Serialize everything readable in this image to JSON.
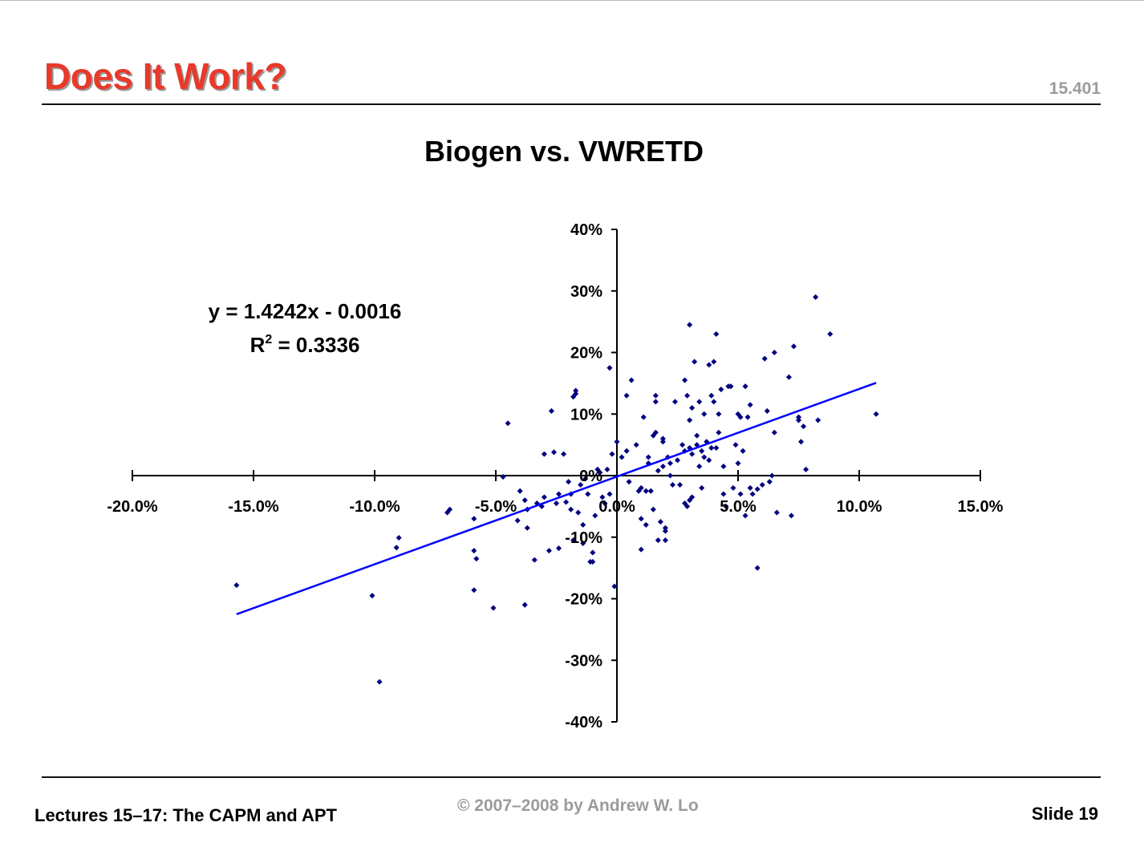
{
  "slide": {
    "title": "Does It Work?",
    "course_number": "15.401",
    "footer_left": "Lectures 15–17: The CAPM and APT",
    "footer_center": "© 2007–2008 by Andrew W. Lo",
    "footer_right": "Slide 19"
  },
  "colors": {
    "title": "#e8392a",
    "points": "#000080",
    "trendline": "#0000ff",
    "axes": "#000000"
  },
  "chart_data": {
    "type": "scatter",
    "title": "Biogen vs. VWRETD",
    "xlabel": "",
    "ylabel": "",
    "xlim": [
      -0.2,
      0.15
    ],
    "ylim": [
      -0.4,
      0.4
    ],
    "x_ticks": [
      -0.2,
      -0.15,
      -0.1,
      -0.05,
      0.0,
      0.05,
      0.1,
      0.15
    ],
    "x_tick_labels": [
      "-20.0%",
      "-15.0%",
      "-10.0%",
      "-5.0%",
      "0.0%",
      "5.0%",
      "10.0%",
      "15.0%"
    ],
    "y_ticks": [
      0.4,
      0.3,
      0.2,
      0.1,
      0.0,
      -0.1,
      -0.2,
      -0.3,
      -0.4
    ],
    "y_tick_labels": [
      "40%",
      "30%",
      "20%",
      "10%",
      "0%",
      "-10%",
      "-20%",
      "-30%",
      "-40%"
    ],
    "grid": false,
    "legend": "none",
    "trendline": {
      "slope": 1.4242,
      "intercept": -0.0016,
      "x_range": [
        -0.157,
        0.107
      ],
      "equation_label": "y = 1.4242x - 0.0016",
      "r2_label_prefix": "R",
      "r2_label_sup": "2",
      "r2_label_suffix": " = 0.3336"
    },
    "series": [
      {
        "points": [
          [
            -0.157,
            -0.178
          ],
          [
            -0.101,
            -0.195
          ],
          [
            -0.098,
            -0.335
          ],
          [
            -0.091,
            -0.117
          ],
          [
            -0.09,
            -0.101
          ],
          [
            -0.07,
            -0.06
          ],
          [
            -0.069,
            -0.055
          ],
          [
            -0.059,
            -0.07
          ],
          [
            -0.058,
            -0.135
          ],
          [
            -0.059,
            -0.122
          ],
          [
            -0.059,
            -0.186
          ],
          [
            -0.051,
            -0.215
          ],
          [
            -0.047,
            -0.002
          ],
          [
            -0.045,
            0.085
          ],
          [
            -0.04,
            -0.025
          ],
          [
            -0.041,
            -0.073
          ],
          [
            -0.038,
            -0.04
          ],
          [
            -0.037,
            -0.055
          ],
          [
            -0.037,
            -0.085
          ],
          [
            -0.038,
            -0.21
          ],
          [
            -0.034,
            -0.137
          ],
          [
            -0.033,
            -0.045
          ],
          [
            -0.031,
            -0.05
          ],
          [
            -0.03,
            -0.035
          ],
          [
            -0.03,
            0.035
          ],
          [
            -0.028,
            -0.122
          ],
          [
            -0.027,
            0.105
          ],
          [
            -0.026,
            0.038
          ],
          [
            -0.025,
            -0.045
          ],
          [
            -0.024,
            -0.03
          ],
          [
            -0.024,
            -0.118
          ],
          [
            -0.022,
            0.035
          ],
          [
            -0.021,
            -0.043
          ],
          [
            -0.02,
            -0.01
          ],
          [
            -0.019,
            -0.03
          ],
          [
            -0.019,
            -0.055
          ],
          [
            -0.018,
            -0.105
          ],
          [
            -0.018,
            0.128
          ],
          [
            -0.017,
            0.133
          ],
          [
            -0.017,
            0.138
          ],
          [
            -0.016,
            -0.06
          ],
          [
            -0.015,
            -0.015
          ],
          [
            -0.014,
            -0.08
          ],
          [
            -0.014,
            -0.11
          ],
          [
            -0.013,
            -0.005
          ],
          [
            -0.012,
            -0.03
          ],
          [
            -0.011,
            -0.14
          ],
          [
            -0.01,
            -0.125
          ],
          [
            -0.01,
            -0.14
          ],
          [
            -0.009,
            -0.065
          ],
          [
            -0.008,
            0.01
          ],
          [
            -0.007,
            0.005
          ],
          [
            -0.006,
            -0.035
          ],
          [
            -0.005,
            -0.045
          ],
          [
            -0.004,
            0.01
          ],
          [
            -0.003,
            -0.03
          ],
          [
            -0.003,
            0.175
          ],
          [
            -0.002,
            0.035
          ],
          [
            -0.001,
            -0.18
          ],
          [
            0.0,
            0.055
          ],
          [
            0.002,
            0.03
          ],
          [
            0.004,
            0.04
          ],
          [
            0.004,
            0.13
          ],
          [
            0.005,
            -0.01
          ],
          [
            0.006,
            0.155
          ],
          [
            0.008,
            0.05
          ],
          [
            0.009,
            -0.025
          ],
          [
            0.01,
            -0.02
          ],
          [
            0.01,
            -0.07
          ],
          [
            0.01,
            -0.12
          ],
          [
            0.011,
            0.095
          ],
          [
            0.012,
            -0.025
          ],
          [
            0.012,
            -0.08
          ],
          [
            0.013,
            0.02
          ],
          [
            0.013,
            0.03
          ],
          [
            0.014,
            -0.025
          ],
          [
            0.015,
            0.065
          ],
          [
            0.015,
            -0.055
          ],
          [
            0.016,
            0.07
          ],
          [
            0.016,
            0.12
          ],
          [
            0.016,
            0.13
          ],
          [
            0.017,
            0.008
          ],
          [
            0.017,
            -0.105
          ],
          [
            0.018,
            -0.075
          ],
          [
            0.019,
            0.015
          ],
          [
            0.019,
            0.055
          ],
          [
            0.019,
            0.06
          ],
          [
            0.02,
            -0.085
          ],
          [
            0.02,
            -0.09
          ],
          [
            0.02,
            -0.105
          ],
          [
            0.021,
            0.03
          ],
          [
            0.022,
            0.0
          ],
          [
            0.022,
            0.02
          ],
          [
            0.023,
            -0.015
          ],
          [
            0.024,
            0.12
          ],
          [
            0.025,
            0.025
          ],
          [
            0.026,
            -0.015
          ],
          [
            0.027,
            0.05
          ],
          [
            0.028,
            0.04
          ],
          [
            0.028,
            0.155
          ],
          [
            0.029,
            0.13
          ],
          [
            0.03,
            0.045
          ],
          [
            0.03,
            0.09
          ],
          [
            0.031,
            0.11
          ],
          [
            0.028,
            -0.045
          ],
          [
            0.029,
            -0.05
          ],
          [
            0.03,
            -0.04
          ],
          [
            0.03,
            0.245
          ],
          [
            0.031,
            0.035
          ],
          [
            0.031,
            -0.035
          ],
          [
            0.032,
            0.185
          ],
          [
            0.033,
            0.05
          ],
          [
            0.033,
            0.065
          ],
          [
            0.034,
            0.12
          ],
          [
            0.034,
            0.015
          ],
          [
            0.035,
            -0.02
          ],
          [
            0.035,
            0.04
          ],
          [
            0.036,
            0.1
          ],
          [
            0.036,
            0.03
          ],
          [
            0.037,
            0.055
          ],
          [
            0.038,
            0.18
          ],
          [
            0.038,
            0.025
          ],
          [
            0.039,
            0.045
          ],
          [
            0.039,
            0.13
          ],
          [
            0.04,
            0.12
          ],
          [
            0.04,
            0.185
          ],
          [
            0.041,
            0.23
          ],
          [
            0.041,
            0.045
          ],
          [
            0.042,
            0.1
          ],
          [
            0.042,
            0.07
          ],
          [
            0.043,
            0.14
          ],
          [
            0.044,
            -0.03
          ],
          [
            0.044,
            0.015
          ],
          [
            0.045,
            -0.05
          ],
          [
            0.046,
            0.145
          ],
          [
            0.047,
            0.145
          ],
          [
            0.048,
            -0.02
          ],
          [
            0.049,
            0.05
          ],
          [
            0.05,
            0.02
          ],
          [
            0.05,
            0.1
          ],
          [
            0.051,
            -0.03
          ],
          [
            0.051,
            0.095
          ],
          [
            0.052,
            0.04
          ],
          [
            0.053,
            -0.065
          ],
          [
            0.053,
            0.145
          ],
          [
            0.054,
            0.095
          ],
          [
            0.055,
            0.115
          ],
          [
            0.055,
            -0.02
          ],
          [
            0.056,
            -0.03
          ],
          [
            0.058,
            -0.15
          ],
          [
            0.058,
            -0.022
          ],
          [
            0.06,
            -0.015
          ],
          [
            0.061,
            0.19
          ],
          [
            0.062,
            0.105
          ],
          [
            0.063,
            -0.01
          ],
          [
            0.064,
            0.0
          ],
          [
            0.065,
            0.2
          ],
          [
            0.065,
            0.07
          ],
          [
            0.066,
            -0.06
          ],
          [
            0.071,
            0.16
          ],
          [
            0.072,
            -0.065
          ],
          [
            0.073,
            0.21
          ],
          [
            0.075,
            0.095
          ],
          [
            0.075,
            0.09
          ],
          [
            0.076,
            0.055
          ],
          [
            0.077,
            0.08
          ],
          [
            0.078,
            0.01
          ],
          [
            0.082,
            0.29
          ],
          [
            0.083,
            0.09
          ],
          [
            0.088,
            0.23
          ],
          [
            0.107,
            0.1
          ]
        ]
      }
    ]
  }
}
